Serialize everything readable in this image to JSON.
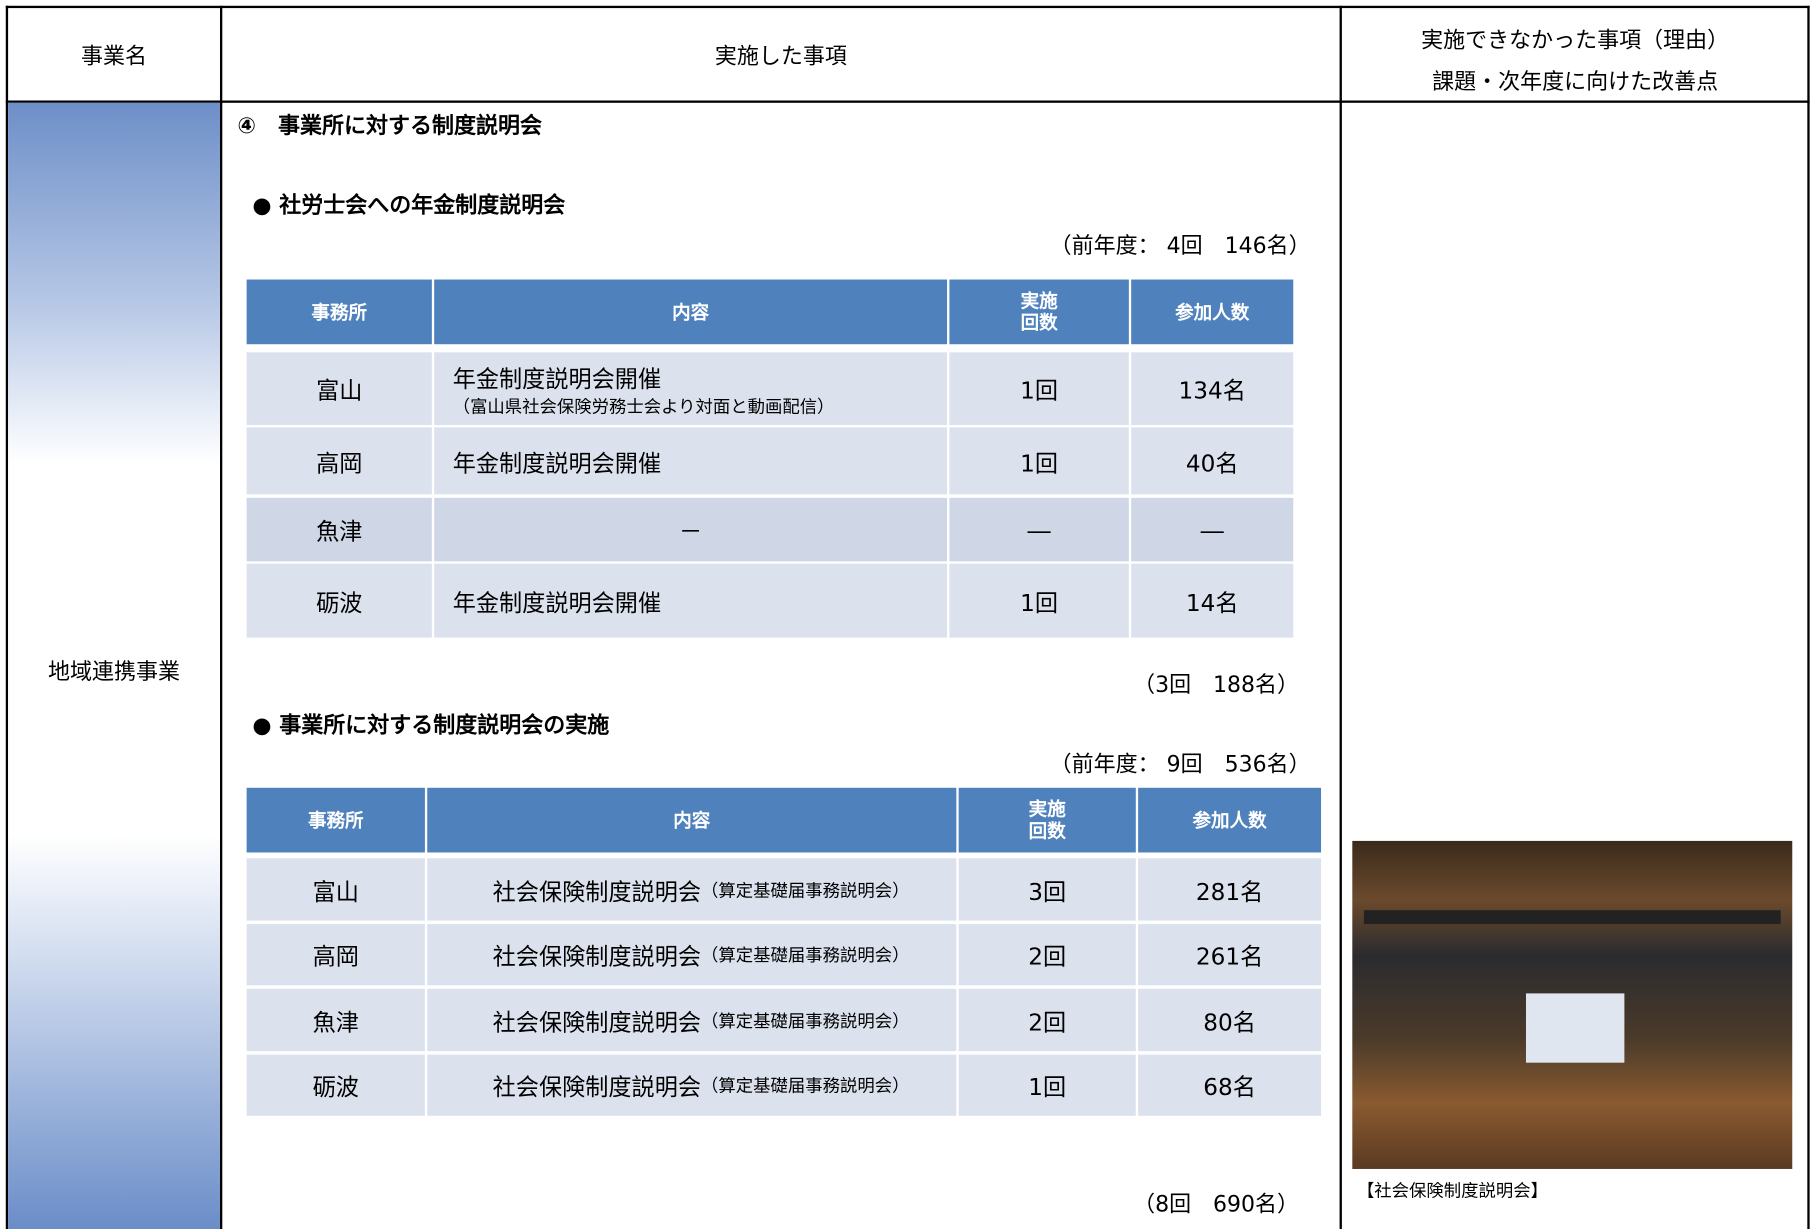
{
  "header": {
    "col1": "事業名",
    "col2": "実施した事項",
    "col3": [
      "実施できなかった事項（理由）",
      "課題・次年度に向けた改善点"
    ]
  },
  "row_label": "地域連携事業",
  "section_title": "④　事業所に対する制度説明会",
  "subsections": [
    {
      "heading": "●  社労士会への年金制度説明会",
      "previous": "（前年度： 4回　146名）",
      "table": {
        "columns": [
          "事務所",
          "内容",
          [
            "実施",
            "回数"
          ],
          "参加人数"
        ],
        "rows": [
          [
            "富山",
            "年金制度説明会開催",
            "（富山県社会保険労務士会より対面と動画配信）",
            "1回",
            "134名"
          ],
          [
            "高岡",
            "年金制度説明会開催",
            null,
            "1回",
            "40名"
          ],
          [
            "魚津",
            "－",
            null,
            "―",
            "―"
          ],
          [
            "砺波",
            "年金制度説明会開催",
            null,
            "1回",
            "14名"
          ]
        ]
      },
      "total": "（3回　188名）"
    },
    {
      "heading": "●  事業所に対する制度説明会の実施",
      "previous": "（前年度： 9回　536名）",
      "table": {
        "columns": [
          "事務所",
          "内容",
          [
            "実施",
            "回数"
          ],
          "参加人数"
        ],
        "rows": [
          [
            "富山",
            "社会保険制度説明会",
            "（算定基礎届事務説明会）",
            "3回",
            "281名"
          ],
          [
            "高岡",
            "社会保険制度説明会",
            "（算定基礎届事務説明会）",
            "2回",
            "261名"
          ],
          [
            "魚津",
            "社会保険制度説明会",
            "（算定基礎届事務説明会）",
            "2回",
            "80名"
          ],
          [
            "砺波",
            "社会保険制度説明会",
            "（算定基礎届事務説明会）",
            "1回",
            "68名"
          ]
        ]
      },
      "total": "（8回　690名）"
    }
  ],
  "photo_caption": "【社会保険制度説明会】"
}
